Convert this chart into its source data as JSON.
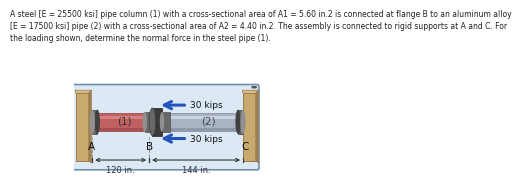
{
  "title_text": "A steel [E = 25500 ksi] pipe column (1) with a cross-sectional area of A1 = 5.60 in.2 is connected at flange B to an aluminum alloy\n[E = 17500 ksi] pipe (2) with a cross-sectional area of A2 = 4.40 in.2. The assembly is connected to rigid supports at A and C. For\nthe loading shown, determine the normal force in the steel pipe (1).",
  "title_fontsize": 5.5,
  "title_color": "#222222",
  "bg_color": "#dce8f4",
  "bg_edge_color": "#7090b0",
  "wall_color_face": "#c8a96e",
  "wall_color_shade": "#a08050",
  "wall_color_edge": "#907040",
  "pipe1_color": "#c06060",
  "pipe1_shade": "#904040",
  "pipe1_highlight": "#e09090",
  "pipe2_color": "#a8b4c4",
  "pipe2_highlight": "#d0d8e4",
  "pipe2_shade": "#808898",
  "flange_dark": "#404040",
  "flange_mid": "#686868",
  "flange_light": "#909090",
  "arrow_color": "#2255bb",
  "text_color": "#111111",
  "dim_color": "#333333",
  "label_A": "A",
  "label_B": "B",
  "label_C": "C",
  "label_1": "(1)",
  "label_2": "(2)",
  "label_30_top": "30 kips",
  "label_30_bot": "30 kips",
  "label_120": "120 in.",
  "label_144": "144 in.",
  "dots_color": "#555555"
}
